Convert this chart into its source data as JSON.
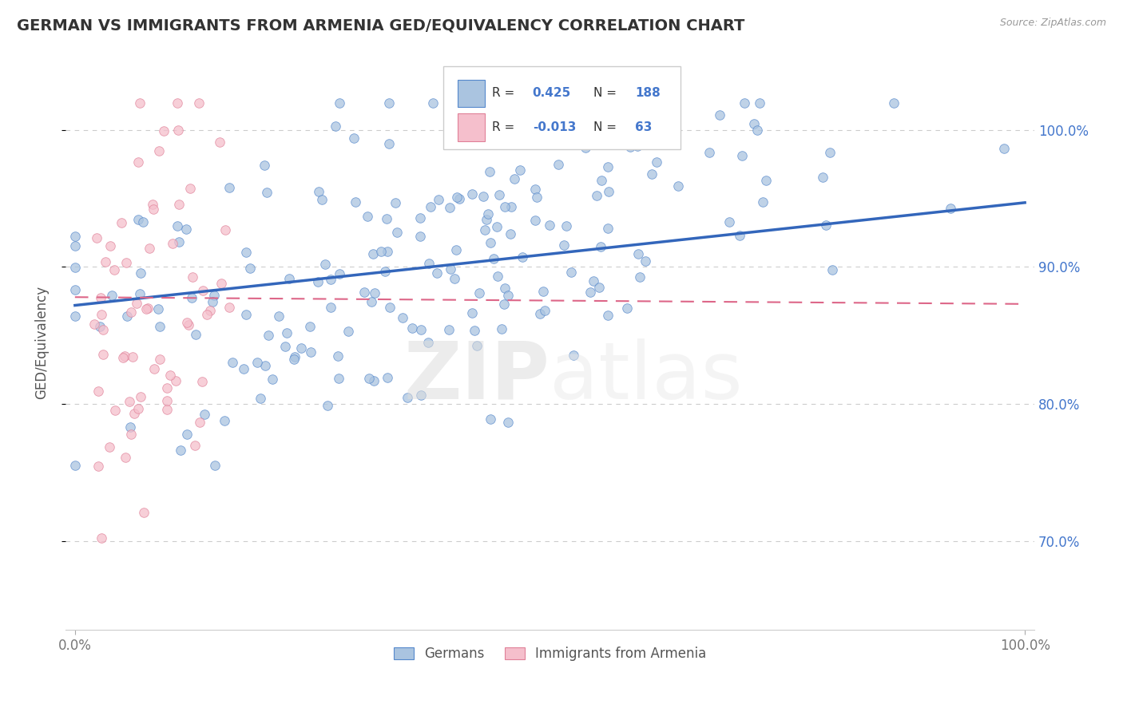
{
  "title": "GERMAN VS IMMIGRANTS FROM ARMENIA GED/EQUIVALENCY CORRELATION CHART",
  "source": "Source: ZipAtlas.com",
  "ylabel": "GED/Equivalency",
  "ytick_labels": [
    "70.0%",
    "80.0%",
    "90.0%",
    "100.0%"
  ],
  "ytick_values": [
    0.7,
    0.8,
    0.9,
    1.0
  ],
  "legend_labels": [
    "Germans",
    "Immigrants from Armenia"
  ],
  "blue_R": 0.425,
  "blue_N": 188,
  "pink_R": -0.013,
  "pink_N": 63,
  "blue_color": "#aac4e0",
  "blue_edge_color": "#5588cc",
  "blue_line_color": "#3366bb",
  "pink_color": "#f5bfcc",
  "pink_edge_color": "#e08098",
  "pink_line_color": "#dd6688",
  "background_color": "#ffffff",
  "seed": 42,
  "xlim_min": -0.01,
  "xlim_max": 1.01,
  "ylim_min": 0.635,
  "ylim_max": 1.055
}
